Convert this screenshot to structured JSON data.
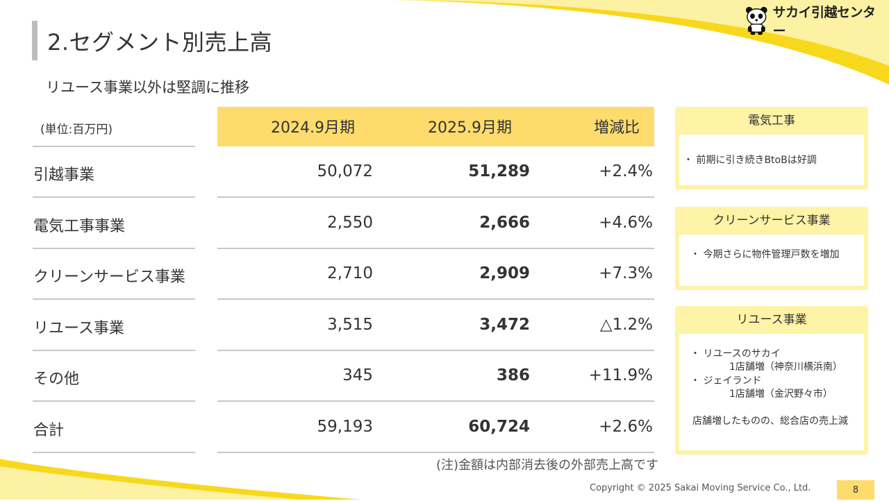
{
  "header": {
    "title": "2.セグメント別売上高",
    "subtitle": "リユース事業以外は堅調に推移",
    "logo_text": "サカイ引越センター"
  },
  "table": {
    "unit": "(単位:百万円)",
    "columns": [
      "2024.9月期",
      "2025.9月期",
      "増減比"
    ],
    "rows": [
      {
        "label": "引越事業",
        "prev": "50,072",
        "curr": "51,289",
        "change": "+2.4%"
      },
      {
        "label": "電気工事事業",
        "prev": "2,550",
        "curr": "2,666",
        "change": "+4.6%"
      },
      {
        "label": "クリーンサービス事業",
        "prev": "2,710",
        "curr": "2,909",
        "change": "+7.3%"
      },
      {
        "label": "リユース事業",
        "prev": "3,515",
        "curr": "3,472",
        "change": "△1.2%"
      },
      {
        "label": "その他",
        "prev": "345",
        "curr": "386",
        "change": "+11.9%"
      },
      {
        "label": "合計",
        "prev": "59,193",
        "curr": "60,724",
        "change": "+2.6%"
      }
    ],
    "note": "(注)金額は内部消去後の外部売上高です"
  },
  "panels": [
    {
      "title": "電気工事",
      "lines": [
        "・ 前期に引き続きBtoBは好調"
      ]
    },
    {
      "title": "クリーンサービス事業",
      "lines": [
        "・ 今期さらに物件管理戸数を増加"
      ]
    },
    {
      "title": "リユース事業",
      "lines": [
        "・ リユースのサカイ",
        "1店舗増（神奈川横浜南）",
        "・ ジェイランド",
        "1店舗増（金沢野々市）",
        "店舗増したものの、総合店の売上減"
      ]
    }
  ],
  "footer": {
    "copyright": "Copyright © 2025 Sakai Moving Service Co., Ltd.",
    "page": "8"
  },
  "colors": {
    "accent_yellow": "#fddc6d",
    "panel_yellow": "#fef3a6",
    "swoosh_yellow": "#f8d81c"
  },
  "icons": [
    "panda-logo-icon"
  ]
}
